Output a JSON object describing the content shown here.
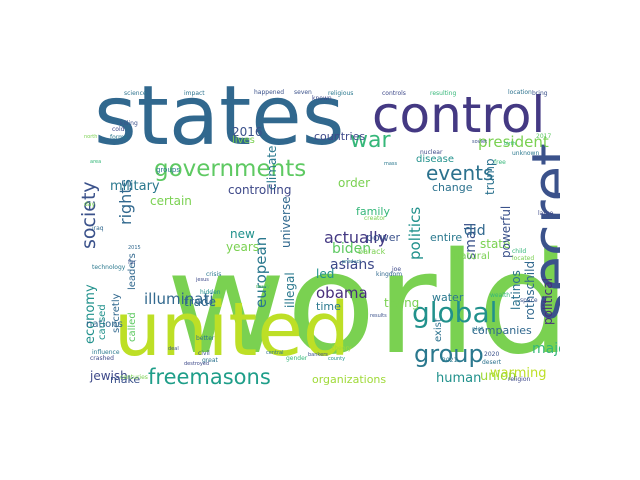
{
  "words": [
    {
      "text": "world",
      "color": "#7ad151"
    },
    {
      "text": "states",
      "color": "#31688e"
    },
    {
      "text": "united",
      "color": "#bddf26"
    },
    {
      "text": "secret",
      "color": "#3b528b"
    },
    {
      "text": "control",
      "color": "#443983"
    },
    {
      "text": "governments",
      "color": "#5ec962"
    },
    {
      "text": "global",
      "color": "#21918c"
    },
    {
      "text": "group",
      "color": "#2a788e"
    },
    {
      "text": "freemasons",
      "color": "#1f9e89"
    },
    {
      "text": "war",
      "color": "#35b779"
    },
    {
      "text": "society",
      "color": "#3b528b"
    },
    {
      "text": "rights",
      "color": "#31688e"
    },
    {
      "text": "events",
      "color": "#2c728e"
    },
    {
      "text": "president",
      "color": "#7ad151"
    },
    {
      "text": "illuminati",
      "color": "#31688e"
    },
    {
      "text": "european",
      "color": "#2a788e"
    },
    {
      "text": "economy",
      "color": "#21918c"
    },
    {
      "text": "actually",
      "color": "#443983"
    },
    {
      "text": "asians",
      "color": "#3e4989"
    },
    {
      "text": "obama",
      "color": "#472d7b"
    },
    {
      "text": "biden",
      "color": "#5ec962"
    },
    {
      "text": "military",
      "color": "#2a788e"
    },
    {
      "text": "politics",
      "color": "#21918c"
    },
    {
      "text": "trump",
      "color": "#2c728e"
    },
    {
      "text": "small",
      "color": "#3b528b"
    },
    {
      "text": "did",
      "color": "#31688e"
    },
    {
      "text": "state",
      "color": "#7ad151"
    },
    {
      "text": "major",
      "color": "#35b779"
    },
    {
      "text": "warming",
      "color": "#bddf26"
    },
    {
      "text": "union",
      "color": "#a0da39"
    },
    {
      "text": "human",
      "color": "#21918c"
    },
    {
      "text": "jewish",
      "color": "#3e4989"
    },
    {
      "text": "organizations",
      "color": "#a0da39"
    },
    {
      "text": "trying",
      "color": "#7ad151"
    },
    {
      "text": "illegal",
      "color": "#2a788e"
    },
    {
      "text": "universe",
      "color": "#31688e"
    },
    {
      "text": "years",
      "color": "#7ad151"
    },
    {
      "text": "new",
      "color": "#21918c"
    },
    {
      "text": "climate",
      "color": "#2a788e"
    },
    {
      "text": "2016",
      "color": "#3b528b"
    },
    {
      "text": "countries",
      "color": "#3e4989"
    },
    {
      "text": "certain",
      "color": "#7ad151"
    },
    {
      "text": "controlling",
      "color": "#3e4989"
    },
    {
      "text": "order",
      "color": "#7ad151"
    },
    {
      "text": "family",
      "color": "#35b779"
    },
    {
      "text": "led",
      "color": "#21918c"
    },
    {
      "text": "time",
      "color": "#2a788e"
    },
    {
      "text": "trade",
      "color": "#31688e"
    },
    {
      "text": "caused",
      "color": "#21918c"
    },
    {
      "text": "nations",
      "color": "#31688e"
    },
    {
      "text": "leaders",
      "color": "#31688e"
    },
    {
      "text": "secretly",
      "color": "#31688e"
    },
    {
      "text": "called",
      "color": "#5ec962"
    },
    {
      "text": "make",
      "color": "#3b528b"
    },
    {
      "text": "power",
      "color": "#3b528b"
    },
    {
      "text": "entire",
      "color": "#2a788e"
    },
    {
      "text": "change",
      "color": "#2c728e"
    },
    {
      "text": "natural",
      "color": "#7ad151"
    },
    {
      "text": "powerful",
      "color": "#3b528b"
    },
    {
      "text": "rothschild",
      "color": "#31688e"
    },
    {
      "text": "political",
      "color": "#472d7b"
    },
    {
      "text": "latinos",
      "color": "#2c728e"
    },
    {
      "text": "companies",
      "color": "#31688e"
    },
    {
      "text": "water",
      "color": "#2a788e"
    },
    {
      "text": "exist",
      "color": "#2c728e"
    },
    {
      "text": "disease",
      "color": "#21918c"
    },
    {
      "text": "lives",
      "color": "#7ad151"
    },
    {
      "text": "groups",
      "color": "#2a788e"
    },
    {
      "text": "science",
      "color": "#2c728e"
    },
    {
      "text": "impact",
      "color": "#2c728e"
    },
    {
      "text": "centuries",
      "color": "#7ad151"
    },
    {
      "text": "happened",
      "color": "#3b528b"
    },
    {
      "text": "seven",
      "color": "#3b528b"
    },
    {
      "text": "religious",
      "color": "#2a788e"
    },
    {
      "text": "controls",
      "color": "#3e4989"
    },
    {
      "text": "resulting",
      "color": "#35b779"
    },
    {
      "text": "location",
      "color": "#2c728e"
    },
    {
      "text": "bring",
      "color": "#3b528b"
    },
    {
      "text": "known",
      "color": "#3e4989"
    },
    {
      "text": "iraq",
      "color": "#31688e"
    },
    {
      "text": "day",
      "color": "#7ad151"
    },
    {
      "text": "crisis",
      "color": "#2a788e"
    },
    {
      "text": "jesus",
      "color": "#3e4989"
    },
    {
      "text": "hidden",
      "color": "#21918c"
    },
    {
      "text": "really",
      "color": "#5ec962"
    },
    {
      "text": "central",
      "color": "#2c728e"
    },
    {
      "text": "gender",
      "color": "#35b779"
    },
    {
      "text": "bankers",
      "color": "#3b528b"
    },
    {
      "text": "theory",
      "color": "#a0da39"
    },
    {
      "text": "civil",
      "color": "#3b528b"
    },
    {
      "text": "better",
      "color": "#2c728e"
    },
    {
      "text": "great",
      "color": "#2c728e"
    },
    {
      "text": "deal",
      "color": "#3b528b"
    },
    {
      "text": "destroyed",
      "color": "#3e4989"
    },
    {
      "text": "kingdom",
      "color": "#31688e"
    },
    {
      "text": "joe",
      "color": "#3e4989"
    },
    {
      "text": "barack",
      "color": "#7ad151"
    },
    {
      "text": "creator",
      "color": "#7ad151"
    },
    {
      "text": "county",
      "color": "#21918c"
    },
    {
      "text": "free",
      "color": "#35b779"
    },
    {
      "text": "wealth",
      "color": "#35b779"
    },
    {
      "text": "space",
      "color": "#3b528b"
    },
    {
      "text": "plot",
      "color": "#2a788e"
    },
    {
      "text": "2020",
      "color": "#3b528b"
    },
    {
      "text": "desert",
      "color": "#2c728e"
    },
    {
      "text": "religion",
      "color": "#3e4989"
    },
    {
      "text": "2021",
      "color": "#2a788e"
    },
    {
      "text": "large",
      "color": "#3e4989"
    },
    {
      "text": "2017",
      "color": "#5ec962"
    },
    {
      "text": "child",
      "color": "#35b779"
    },
    {
      "text": "located",
      "color": "#7ad151"
    },
    {
      "text": "nuclear",
      "color": "#3e4989"
    },
    {
      "text": "unknown",
      "color": "#2a788e"
    },
    {
      "text": "2015",
      "color": "#31688e"
    },
    {
      "text": "far",
      "color": "#3b528b"
    },
    {
      "text": "influence",
      "color": "#2a788e"
    },
    {
      "text": "crashed",
      "color": "#3e4989"
    },
    {
      "text": "technology",
      "color": "#2a788e"
    },
    {
      "text": "killing",
      "color": "#3b528b"
    },
    {
      "text": "cold",
      "color": "#3e4989"
    },
    {
      "text": "forms",
      "color": "#2a788e"
    },
    {
      "text": "north",
      "color": "#7ad151"
    },
    {
      "text": "area",
      "color": "#35b779"
    },
    {
      "text": "mass",
      "color": "#2a788e"
    },
    {
      "text": "birth",
      "color": "#35b779"
    },
    {
      "text": "soviet",
      "color": "#3b528b"
    },
    {
      "text": "product",
      "color": "#2a788e"
    },
    {
      "text": "results",
      "color": "#3b528b"
    }
  ]
}
